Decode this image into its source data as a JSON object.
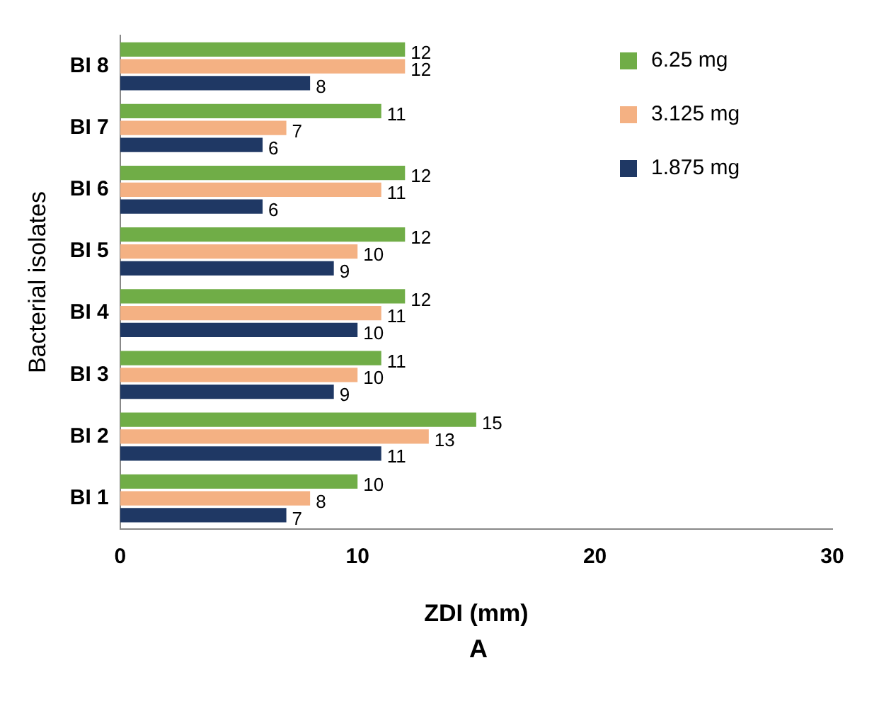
{
  "chart_data": {
    "type": "bar",
    "orientation": "horizontal",
    "xlabel": "ZDI (mm)",
    "ylabel": "Bacterial isolates",
    "categories": [
      "BI 8",
      "BI 7",
      "BI 6",
      "BI 5",
      "BI 4",
      "BI 3",
      "BI 2",
      "BI 1"
    ],
    "series": [
      {
        "name": "6.25 mg",
        "color": "#70ad47",
        "values": [
          12,
          11,
          12,
          12,
          12,
          11,
          15,
          10
        ]
      },
      {
        "name": "3.125 mg",
        "color": "#f4b183",
        "values": [
          12,
          7,
          11,
          10,
          11,
          10,
          13,
          8
        ]
      },
      {
        "name": "1.875 mg",
        "color": "#1f3864",
        "values": [
          8,
          6,
          6,
          9,
          10,
          9,
          11,
          7
        ]
      }
    ],
    "xlim": [
      0,
      30
    ],
    "xticks": [
      0,
      10,
      20,
      30
    ],
    "grid": false,
    "legend": "top right",
    "data_labels": true,
    "annotations": [
      "A"
    ]
  }
}
